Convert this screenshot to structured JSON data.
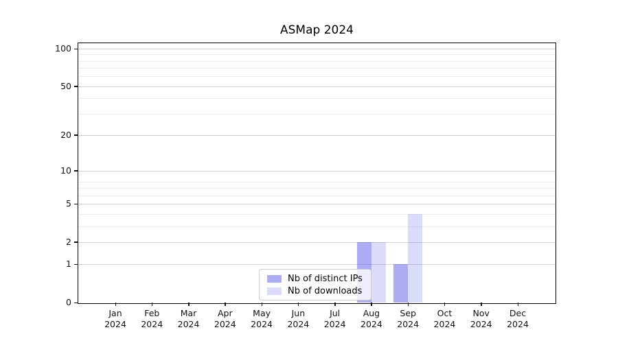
{
  "chart_data": {
    "type": "bar",
    "title": "ASMap 2024",
    "categories": [
      "Jan",
      "Feb",
      "Mar",
      "Apr",
      "May",
      "Jun",
      "Jul",
      "Aug",
      "Sep",
      "Oct",
      "Nov",
      "Dec"
    ],
    "year_label": "2024",
    "series": [
      {
        "key": "distinct-ips",
        "name": "Nb of distinct IPs",
        "color": "rgba(90,90,235,0.5)",
        "values": [
          0,
          0,
          0,
          0,
          0,
          0,
          0,
          2,
          1,
          0,
          0,
          0
        ]
      },
      {
        "key": "downloads",
        "name": "Nb of downloads",
        "color": "rgba(90,90,235,0.22)",
        "values": [
          0,
          0,
          0,
          0,
          0,
          0,
          0,
          2,
          4,
          0,
          0,
          0
        ]
      }
    ],
    "yscale": "log1p",
    "yticks": [
      0,
      1,
      2,
      5,
      10,
      20,
      50,
      100
    ],
    "minor_yticks": [
      3,
      4,
      6,
      7,
      8,
      30,
      40,
      60,
      70,
      80,
      90
    ],
    "ylim": [
      0,
      110
    ],
    "xlabel": "",
    "ylabel": "",
    "grid": "horizontal",
    "legend_position": "lower center"
  },
  "colors": {
    "background": "#ffffff",
    "axis_frame": "#000000",
    "major_grid": "#cfcfcf",
    "minor_grid": "#ececec",
    "tick_text": "#111111",
    "bar_dark": "#adadf5",
    "bar_light": "#dbdbfa",
    "legend_border": "#cccccc"
  }
}
